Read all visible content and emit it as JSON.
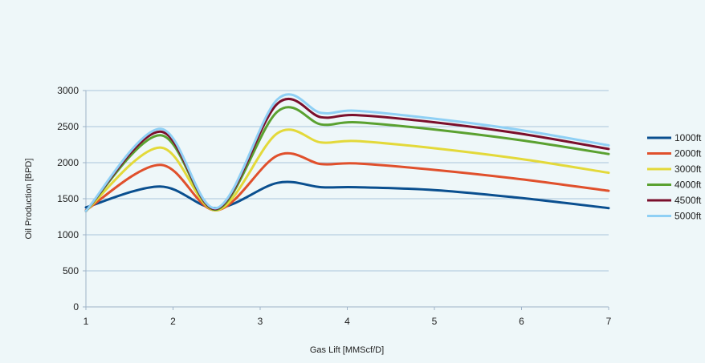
{
  "chart_data": {
    "type": "line",
    "xlabel": "Gas Lift [MMScf/D]",
    "ylabel": "Oil Production [BPD]",
    "xlim": [
      1,
      7
    ],
    "ylim": [
      0,
      3000
    ],
    "x_ticks": [
      "1",
      "2",
      "3",
      "4",
      "5",
      "6",
      "7"
    ],
    "y_ticks": [
      "0",
      "500",
      "1000",
      "1500",
      "2000",
      "2500",
      "3000"
    ],
    "grid": "horizontal",
    "legend_position": "right",
    "x": [
      1,
      1.85,
      2.5,
      3.2,
      3.7,
      4.1,
      5,
      6,
      7
    ],
    "series": [
      {
        "name": "1000ft",
        "color": "#0a4f8f",
        "values": [
          1380,
          1670,
          1370,
          1720,
          1660,
          1660,
          1620,
          1510,
          1370
        ]
      },
      {
        "name": "2000ft",
        "color": "#e0502c",
        "values": [
          1340,
          1970,
          1340,
          2100,
          1980,
          1990,
          1900,
          1770,
          1610
        ]
      },
      {
        "name": "3000ft",
        "color": "#e3d93a",
        "values": [
          1330,
          2210,
          1340,
          2410,
          2280,
          2300,
          2200,
          2050,
          1860
        ]
      },
      {
        "name": "4000ft",
        "color": "#5aa130",
        "values": [
          1330,
          2380,
          1350,
          2710,
          2530,
          2560,
          2460,
          2310,
          2120
        ]
      },
      {
        "name": "4500ft",
        "color": "#7a0f2c",
        "values": [
          1330,
          2430,
          1360,
          2820,
          2630,
          2660,
          2560,
          2400,
          2190
        ]
      },
      {
        "name": "5000ft",
        "color": "#8fd0f5",
        "values": [
          1330,
          2470,
          1370,
          2880,
          2690,
          2720,
          2610,
          2450,
          2240
        ]
      }
    ]
  }
}
